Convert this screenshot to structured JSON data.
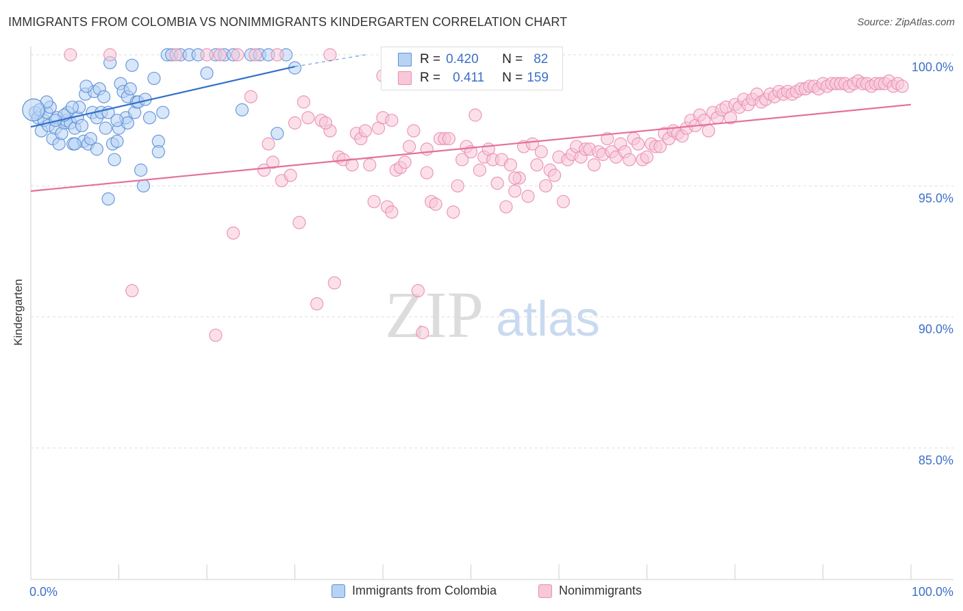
{
  "header": {
    "title": "IMMIGRANTS FROM COLOMBIA VS NONIMMIGRANTS KINDERGARTEN CORRELATION CHART",
    "source": "Source: ZipAtlas.com"
  },
  "watermark": {
    "zip": "ZIP",
    "atlas": "atlas"
  },
  "stats": [
    {
      "r_label": "R =",
      "r_value": "0.420",
      "n_label": "N =",
      "n_value": "82",
      "color": "#5b8fd6",
      "fill": "#b8d2f4"
    },
    {
      "r_label": "R =",
      "r_value": "0.411",
      "n_label": "N =",
      "n_value": "159",
      "color": "#e98db0",
      "fill": "#f8c7d8"
    }
  ],
  "legend": [
    {
      "label": "Immigrants from Colombia",
      "color": "#5b8fd6",
      "fill": "#b8d2f4"
    },
    {
      "label": "Nonimmigrants",
      "color": "#e98db0",
      "fill": "#f8c7d8"
    }
  ],
  "chart_data": {
    "type": "scatter",
    "ylabel": "Kindergarten",
    "xlim": [
      0,
      100
    ],
    "ylim": [
      80.5,
      100.5
    ],
    "x_tick_labels": [
      "0.0%",
      "100.0%"
    ],
    "y_ticks": [
      100,
      95,
      90,
      85
    ],
    "y_tick_labels": [
      "100.0%",
      "95.0%",
      "90.0%",
      "85.0%"
    ],
    "grid": true,
    "colors": {
      "blue": "#3d7bd4",
      "pink": "#e9769d",
      "axis_text": "#3d6fc8"
    },
    "series": [
      {
        "name": "Immigrants from Colombia",
        "color": "#5b8fd6",
        "fill": "#b8d2f4",
        "line_color": "#2f6fcb",
        "trend": {
          "x0": 0,
          "y0": 97.25,
          "x1": 30,
          "y1": 99.55,
          "dash_to_x": 38,
          "dash_to_y": 100
        },
        "points": [
          [
            0.5,
            97.8
          ],
          [
            0.8,
            97.6
          ],
          [
            1.0,
            97.9
          ],
          [
            1.2,
            97.1
          ],
          [
            1.5,
            97.5
          ],
          [
            1.8,
            97.8
          ],
          [
            2.0,
            97.3
          ],
          [
            2.2,
            98.0
          ],
          [
            2.5,
            96.8
          ],
          [
            2.8,
            97.2
          ],
          [
            3.0,
            97.6
          ],
          [
            3.2,
            96.6
          ],
          [
            3.5,
            97.0
          ],
          [
            3.8,
            97.4
          ],
          [
            4.0,
            97.5
          ],
          [
            4.2,
            97.8
          ],
          [
            4.5,
            97.4
          ],
          [
            4.8,
            96.6
          ],
          [
            5.0,
            97.2
          ],
          [
            5.3,
            97.6
          ],
          [
            5.5,
            98.0
          ],
          [
            5.8,
            97.3
          ],
          [
            6.0,
            96.7
          ],
          [
            6.2,
            98.5
          ],
          [
            6.5,
            96.6
          ],
          [
            6.8,
            96.8
          ],
          [
            7.0,
            97.8
          ],
          [
            7.2,
            98.6
          ],
          [
            7.5,
            97.6
          ],
          [
            7.8,
            98.7
          ],
          [
            8.0,
            97.8
          ],
          [
            8.3,
            98.4
          ],
          [
            8.5,
            97.2
          ],
          [
            8.8,
            97.8
          ],
          [
            9.0,
            99.7
          ],
          [
            9.3,
            96.6
          ],
          [
            9.5,
            96.0
          ],
          [
            9.8,
            96.7
          ],
          [
            10.0,
            97.2
          ],
          [
            10.2,
            98.9
          ],
          [
            10.5,
            98.6
          ],
          [
            10.8,
            97.6
          ],
          [
            11.0,
            98.4
          ],
          [
            11.3,
            98.7
          ],
          [
            11.5,
            99.6
          ],
          [
            11.8,
            97.8
          ],
          [
            12.0,
            98.2
          ],
          [
            12.2,
            98.2
          ],
          [
            12.5,
            95.6
          ],
          [
            12.8,
            95.0
          ],
          [
            13.0,
            98.3
          ],
          [
            13.5,
            97.6
          ],
          [
            14.0,
            99.1
          ],
          [
            14.5,
            96.7
          ],
          [
            15.0,
            97.8
          ],
          [
            15.5,
            100.0
          ],
          [
            16.0,
            100.0
          ],
          [
            17.0,
            100.0
          ],
          [
            18.0,
            100.0
          ],
          [
            19.0,
            100.0
          ],
          [
            20.0,
            99.3
          ],
          [
            21.0,
            100.0
          ],
          [
            22.0,
            100.0
          ],
          [
            23.0,
            100.0
          ],
          [
            24.0,
            97.9
          ],
          [
            25.0,
            100.0
          ],
          [
            26.0,
            100.0
          ],
          [
            27.0,
            100.0
          ],
          [
            28.0,
            97.0
          ],
          [
            29.0,
            100.0
          ],
          [
            30.0,
            99.5
          ],
          [
            14.5,
            96.3
          ],
          [
            8.8,
            94.5
          ],
          [
            5.0,
            96.6
          ],
          [
            7.5,
            96.4
          ],
          [
            11.0,
            97.4
          ],
          [
            3.8,
            97.7
          ],
          [
            1.8,
            98.2
          ],
          [
            6.3,
            98.8
          ],
          [
            9.8,
            97.5
          ],
          [
            2.8,
            97.5
          ],
          [
            4.7,
            98.0
          ]
        ]
      },
      {
        "name": "Nonimmigrants",
        "color": "#e98db0",
        "fill": "#f8c7d8",
        "line_color": "#e4709a",
        "trend": {
          "x0": 0,
          "y0": 94.8,
          "x1": 100,
          "y1": 98.1
        },
        "points": [
          [
            4.5,
            100.0
          ],
          [
            9.0,
            100.0
          ],
          [
            16.5,
            100.0
          ],
          [
            20.0,
            100.0
          ],
          [
            21.5,
            100.0
          ],
          [
            23.5,
            100.0
          ],
          [
            25.5,
            100.0
          ],
          [
            28.0,
            100.0
          ],
          [
            34.0,
            100.0
          ],
          [
            40.0,
            99.2
          ],
          [
            23.0,
            93.2
          ],
          [
            11.5,
            91.0
          ],
          [
            21.0,
            89.3
          ],
          [
            25.0,
            98.4
          ],
          [
            26.5,
            95.6
          ],
          [
            27.0,
            96.6
          ],
          [
            27.5,
            95.9
          ],
          [
            28.5,
            95.2
          ],
          [
            29.5,
            95.4
          ],
          [
            30.0,
            97.4
          ],
          [
            30.5,
            93.6
          ],
          [
            31.0,
            98.2
          ],
          [
            31.5,
            97.6
          ],
          [
            32.5,
            90.5
          ],
          [
            33.0,
            97.5
          ],
          [
            34.0,
            97.1
          ],
          [
            34.5,
            91.3
          ],
          [
            35.0,
            96.1
          ],
          [
            35.5,
            96.0
          ],
          [
            36.5,
            95.8
          ],
          [
            37.0,
            97.0
          ],
          [
            37.5,
            96.8
          ],
          [
            38.0,
            97.1
          ],
          [
            38.5,
            95.8
          ],
          [
            39.0,
            94.4
          ],
          [
            39.5,
            97.2
          ],
          [
            40.0,
            97.6
          ],
          [
            40.5,
            94.2
          ],
          [
            41.0,
            97.5
          ],
          [
            41.5,
            95.6
          ],
          [
            42.0,
            95.7
          ],
          [
            42.5,
            95.9
          ],
          [
            43.0,
            96.5
          ],
          [
            43.5,
            97.1
          ],
          [
            44.0,
            91.0
          ],
          [
            44.5,
            89.4
          ],
          [
            45.0,
            95.5
          ],
          [
            45.5,
            94.4
          ],
          [
            46.0,
            94.3
          ],
          [
            46.5,
            96.8
          ],
          [
            47.0,
            96.8
          ],
          [
            47.5,
            96.8
          ],
          [
            48.0,
            94.0
          ],
          [
            48.5,
            95.0
          ],
          [
            49.0,
            96.0
          ],
          [
            49.5,
            96.5
          ],
          [
            50.0,
            96.3
          ],
          [
            50.5,
            97.7
          ],
          [
            51.0,
            95.6
          ],
          [
            51.5,
            96.1
          ],
          [
            52.0,
            96.4
          ],
          [
            52.5,
            96.0
          ],
          [
            53.0,
            95.1
          ],
          [
            53.5,
            96.0
          ],
          [
            54.0,
            94.2
          ],
          [
            54.5,
            95.8
          ],
          [
            55.0,
            94.8
          ],
          [
            55.5,
            95.3
          ],
          [
            56.0,
            96.5
          ],
          [
            56.5,
            94.6
          ],
          [
            57.0,
            96.6
          ],
          [
            57.5,
            95.8
          ],
          [
            58.0,
            96.3
          ],
          [
            58.5,
            95.0
          ],
          [
            59.0,
            95.6
          ],
          [
            59.5,
            95.4
          ],
          [
            60.0,
            96.1
          ],
          [
            60.5,
            94.4
          ],
          [
            61.0,
            96.0
          ],
          [
            61.5,
            96.2
          ],
          [
            62.0,
            96.5
          ],
          [
            62.5,
            96.1
          ],
          [
            63.0,
            96.4
          ],
          [
            63.5,
            96.4
          ],
          [
            64.0,
            95.8
          ],
          [
            64.5,
            96.3
          ],
          [
            65.0,
            96.2
          ],
          [
            65.5,
            96.8
          ],
          [
            66.0,
            96.3
          ],
          [
            66.5,
            96.1
          ],
          [
            67.0,
            96.6
          ],
          [
            67.5,
            96.3
          ],
          [
            68.0,
            96.0
          ],
          [
            68.5,
            96.8
          ],
          [
            69.0,
            96.6
          ],
          [
            69.5,
            96.0
          ],
          [
            70.0,
            96.1
          ],
          [
            70.5,
            96.6
          ],
          [
            71.0,
            96.5
          ],
          [
            71.5,
            96.5
          ],
          [
            72.0,
            97.0
          ],
          [
            72.5,
            96.8
          ],
          [
            73.0,
            97.1
          ],
          [
            73.5,
            97.0
          ],
          [
            74.0,
            96.9
          ],
          [
            74.5,
            97.2
          ],
          [
            75.0,
            97.5
          ],
          [
            75.5,
            97.3
          ],
          [
            76.0,
            97.7
          ],
          [
            76.5,
            97.5
          ],
          [
            77.0,
            97.1
          ],
          [
            77.5,
            97.8
          ],
          [
            78.0,
            97.6
          ],
          [
            78.5,
            97.9
          ],
          [
            79.0,
            98.0
          ],
          [
            79.5,
            97.6
          ],
          [
            80.0,
            98.1
          ],
          [
            80.5,
            98.0
          ],
          [
            81.0,
            98.3
          ],
          [
            81.5,
            98.1
          ],
          [
            82.0,
            98.3
          ],
          [
            82.5,
            98.5
          ],
          [
            83.0,
            98.2
          ],
          [
            83.5,
            98.3
          ],
          [
            84.0,
            98.5
          ],
          [
            84.5,
            98.4
          ],
          [
            85.0,
            98.6
          ],
          [
            85.5,
            98.5
          ],
          [
            86.0,
            98.6
          ],
          [
            86.5,
            98.5
          ],
          [
            87.0,
            98.6
          ],
          [
            87.5,
            98.7
          ],
          [
            88.0,
            98.7
          ],
          [
            88.5,
            98.8
          ],
          [
            89.0,
            98.8
          ],
          [
            89.5,
            98.7
          ],
          [
            90.0,
            98.9
          ],
          [
            90.5,
            98.8
          ],
          [
            91.0,
            98.9
          ],
          [
            91.5,
            98.9
          ],
          [
            92.0,
            98.9
          ],
          [
            92.5,
            98.9
          ],
          [
            93.0,
            98.8
          ],
          [
            93.5,
            98.9
          ],
          [
            94.0,
            99.0
          ],
          [
            94.5,
            98.9
          ],
          [
            95.0,
            98.9
          ],
          [
            95.5,
            98.8
          ],
          [
            96.0,
            98.9
          ],
          [
            96.5,
            98.9
          ],
          [
            97.0,
            98.9
          ],
          [
            97.5,
            99.0
          ],
          [
            98.0,
            98.8
          ],
          [
            98.5,
            98.9
          ],
          [
            99.0,
            98.8
          ],
          [
            45.0,
            96.4
          ],
          [
            55.0,
            95.3
          ],
          [
            33.5,
            97.4
          ],
          [
            41.0,
            94.0
          ]
        ]
      }
    ]
  }
}
